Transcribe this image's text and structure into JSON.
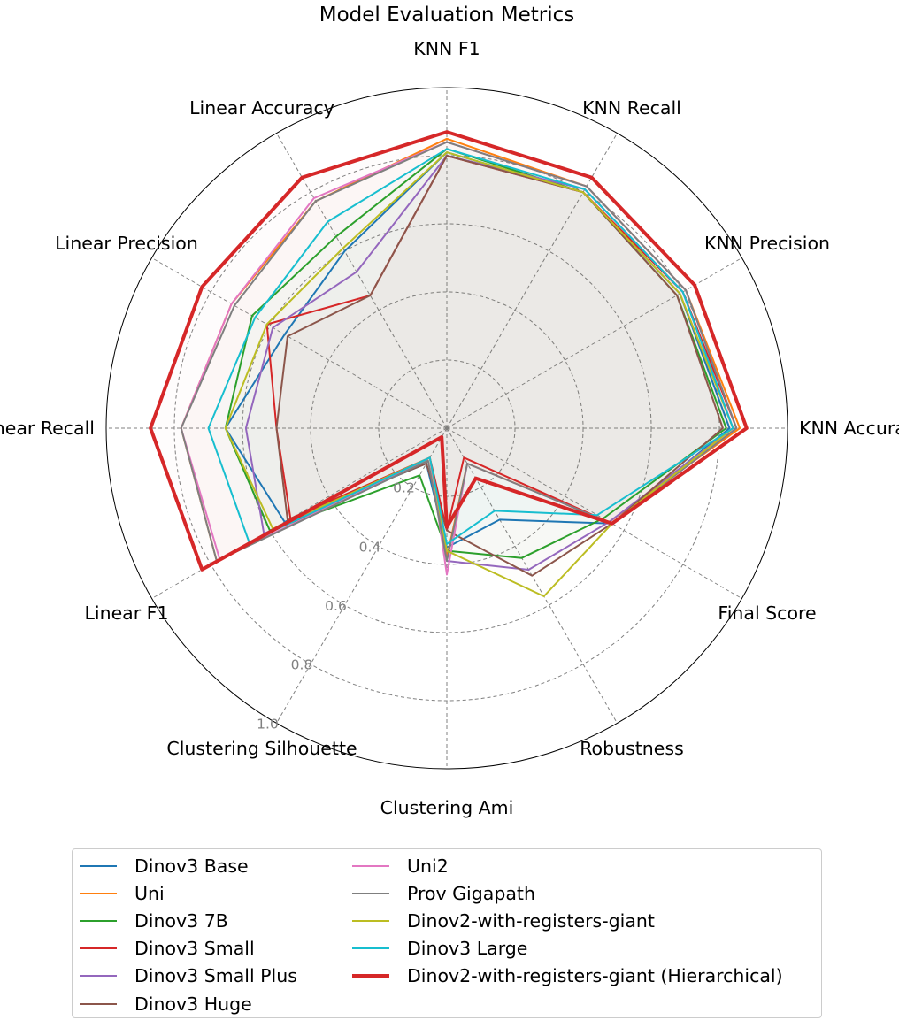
{
  "chart_data": {
    "type": "radar",
    "title": "Model Evaluation Metrics",
    "axes": [
      "KNN Accuracy",
      "KNN Precision",
      "KNN Recall",
      "KNN F1",
      "Linear Accuracy",
      "Linear Precision",
      "Linear Recall",
      "Linear F1",
      "Clustering Silhouette",
      "Clustering Ami",
      "Robustness",
      "Final Score"
    ],
    "rlim": [
      0,
      1.0
    ],
    "rticks": [
      "0.2",
      "0.4",
      "0.6",
      "0.8",
      "1.0"
    ],
    "rtick_values": [
      0.2,
      0.4,
      0.6,
      0.8,
      1.0
    ],
    "grid": true,
    "legend_position": "bottom",
    "series": [
      {
        "name": "Dinov3 Base",
        "color": "#1f77b4",
        "width": 2,
        "values": [
          0.83,
          0.79,
          0.8,
          0.81,
          0.6,
          0.55,
          0.65,
          0.55,
          0.12,
          0.35,
          0.31,
          0.56
        ]
      },
      {
        "name": "Uni",
        "color": "#ff7f0e",
        "width": 2,
        "values": [
          0.86,
          0.81,
          0.82,
          0.85,
          0.77,
          0.73,
          0.78,
          0.78,
          0.1,
          0.38,
          0.12,
          0.55
        ]
      },
      {
        "name": "Dinov3 7B",
        "color": "#2ca02c",
        "width": 2,
        "values": [
          0.82,
          0.78,
          0.8,
          0.82,
          0.65,
          0.66,
          0.65,
          0.6,
          0.16,
          0.36,
          0.44,
          0.53
        ]
      },
      {
        "name": "Dinov3 Small",
        "color": "#d62728",
        "width": 2,
        "values": [
          0.85,
          0.8,
          0.8,
          0.8,
          0.45,
          0.61,
          0.5,
          0.53,
          0.1,
          0.3,
          0.1,
          0.56
        ]
      },
      {
        "name": "Dinov3 Small Plus",
        "color": "#9467bd",
        "width": 2,
        "values": [
          0.84,
          0.8,
          0.81,
          0.8,
          0.53,
          0.59,
          0.59,
          0.62,
          0.1,
          0.39,
          0.48,
          0.55
        ]
      },
      {
        "name": "Dinov3 Huge",
        "color": "#8c564b",
        "width": 2,
        "values": [
          0.81,
          0.78,
          0.8,
          0.8,
          0.45,
          0.54,
          0.5,
          0.54,
          0.12,
          0.3,
          0.5,
          0.56
        ]
      },
      {
        "name": "Uni2",
        "color": "#e377c2",
        "width": 2,
        "values": [
          0.85,
          0.81,
          0.82,
          0.84,
          0.78,
          0.73,
          0.78,
          0.77,
          0.1,
          0.43,
          0.12,
          0.56
        ]
      },
      {
        "name": "Prov Gigapath",
        "color": "#7f7f7f",
        "width": 2,
        "values": [
          0.85,
          0.81,
          0.82,
          0.84,
          0.77,
          0.72,
          0.78,
          0.78,
          0.11,
          0.39,
          0.12,
          0.56
        ]
      },
      {
        "name": "Dinov2-with-registers-giant",
        "color": "#bcbd22",
        "width": 2,
        "values": [
          0.84,
          0.79,
          0.8,
          0.81,
          0.61,
          0.61,
          0.65,
          0.59,
          0.1,
          0.36,
          0.57,
          0.56
        ]
      },
      {
        "name": "Dinov3 Large",
        "color": "#17becf",
        "width": 2,
        "values": [
          0.84,
          0.8,
          0.81,
          0.82,
          0.7,
          0.65,
          0.7,
          0.67,
          0.1,
          0.34,
          0.28,
          0.51
        ]
      },
      {
        "name": "Dinov2-with-registers-giant (Hierarchical)",
        "color": "#d62728",
        "width": 4,
        "values": [
          0.88,
          0.84,
          0.85,
          0.87,
          0.85,
          0.83,
          0.87,
          0.83,
          0.03,
          0.29,
          0.17,
          0.56
        ]
      }
    ]
  }
}
